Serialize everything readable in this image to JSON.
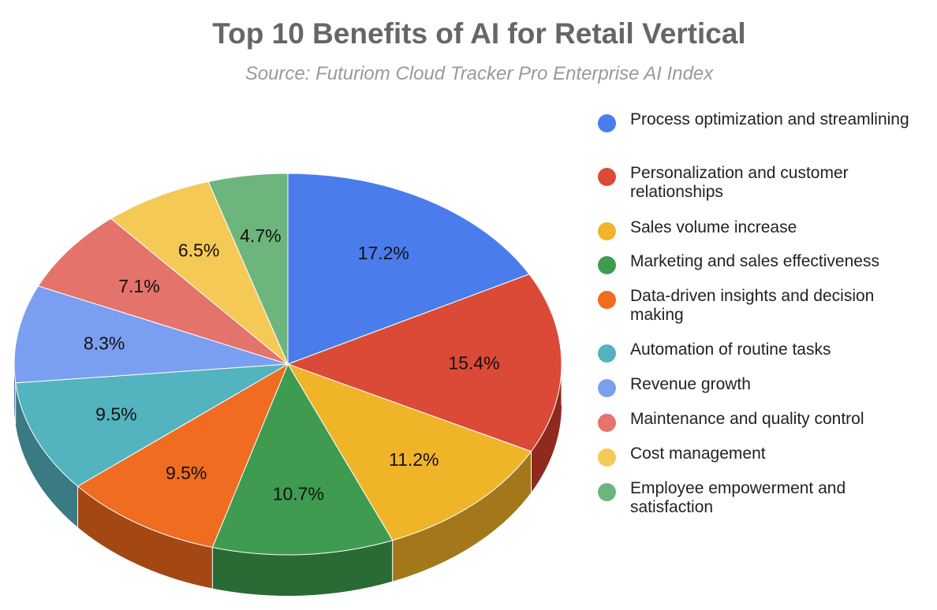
{
  "chart_data": {
    "type": "pie",
    "title": "Top 10 Benefits of AI for Retail Vertical",
    "subtitle": "Source: Futuriom Cloud Tracker Pro Enterprise AI Index",
    "legend_position": "right",
    "slices": [
      {
        "label": "Process optimization and streamlining",
        "value": 17.2,
        "display": "17.2%",
        "color": "#4A7DEB",
        "side": "#2F5DB8"
      },
      {
        "label": "Personalization and customer relationships",
        "value": 15.4,
        "display": "15.4%",
        "color": "#DB4A36",
        "side": "#8F2A1E"
      },
      {
        "label": "Sales volume increase",
        "value": 11.2,
        "display": "11.2%",
        "color": "#F0B429",
        "side": "#A2781B"
      },
      {
        "label": "Marketing and sales effectiveness",
        "value": 10.7,
        "display": "10.7%",
        "color": "#3F9B50",
        "side": "#2A6B35"
      },
      {
        "label": "Data-driven insights and decision making",
        "value": 9.5,
        "display": "9.5%",
        "color": "#EF6C20",
        "side": "#A34713"
      },
      {
        "label": "Automation of routine tasks",
        "value": 9.5,
        "display": "9.5%",
        "color": "#53B3BF",
        "side": "#3A7A83"
      },
      {
        "label": "Revenue growth",
        "value": 8.3,
        "display": "8.3%",
        "color": "#7B9FF0",
        "side": "#5672B0"
      },
      {
        "label": "Maintenance and quality control",
        "value": 7.1,
        "display": "7.1%",
        "color": "#E3736B",
        "side": "#A04F49"
      },
      {
        "label": "Cost management",
        "value": 6.5,
        "display": "6.5%",
        "color": "#F5C955",
        "side": "#AA8A39"
      },
      {
        "label": "Employee empowerment and satisfaction",
        "value": 4.7,
        "display": "4.7%",
        "color": "#6DB57C",
        "side": "#4A7F55"
      }
    ]
  }
}
